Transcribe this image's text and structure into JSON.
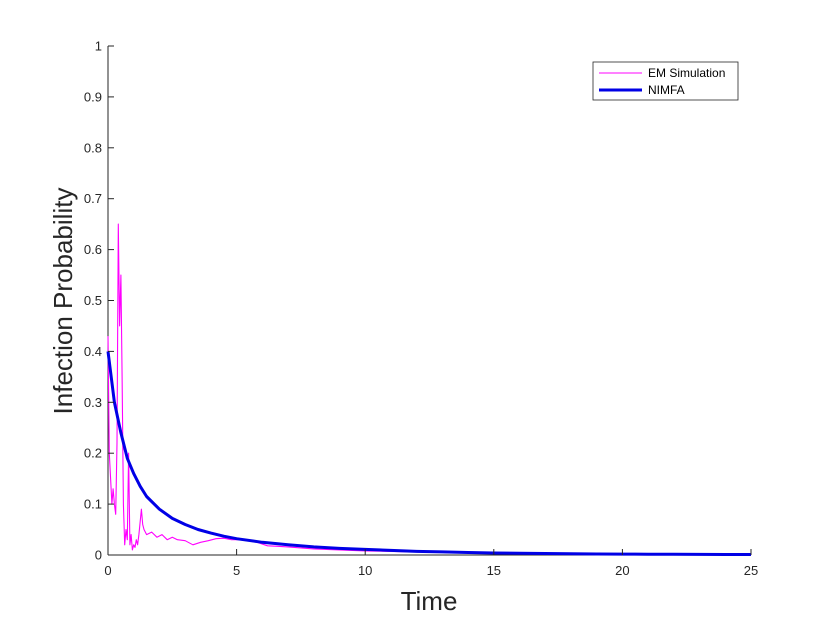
{
  "chart_data": {
    "type": "line",
    "xlabel": "Time",
    "ylabel": "Infection Probability",
    "xlim": [
      0,
      25
    ],
    "ylim": [
      0,
      1
    ],
    "xticks": [
      0,
      5,
      10,
      15,
      20,
      25
    ],
    "yticks": [
      0,
      0.1,
      0.2,
      0.3,
      0.4,
      0.5,
      0.6,
      0.7,
      0.8,
      0.9,
      1
    ],
    "grid": false,
    "legend_position": "top-right",
    "series": [
      {
        "name": "EM Simulation",
        "color": "#ff00ff",
        "style": "thin",
        "x": [
          0,
          0.05,
          0.1,
          0.15,
          0.2,
          0.25,
          0.3,
          0.35,
          0.4,
          0.45,
          0.5,
          0.55,
          0.6,
          0.65,
          0.7,
          0.75,
          0.8,
          0.85,
          0.9,
          0.95,
          1.0,
          1.05,
          1.1,
          1.15,
          1.2,
          1.3,
          1.35,
          1.4,
          1.5,
          1.7,
          1.9,
          2.1,
          2.3,
          2.5,
          2.7,
          3.0,
          3.3,
          3.6,
          3.9,
          4.2,
          4.5,
          4.8,
          5.1,
          5.4,
          5.8,
          6.2,
          6.6,
          7.0,
          7.5,
          8.0,
          9.0,
          10.0,
          11.0,
          12.0,
          13.0,
          14.0,
          15.0,
          16.0,
          17.0,
          18.0,
          19.0,
          20.0,
          21.0,
          22.0,
          23.0,
          24.0,
          25.0
        ],
        "y": [
          0.43,
          0.2,
          0.15,
          0.1,
          0.13,
          0.1,
          0.08,
          0.22,
          0.65,
          0.45,
          0.55,
          0.35,
          0.1,
          0.02,
          0.05,
          0.03,
          0.2,
          0.02,
          0.04,
          0.01,
          0.02,
          0.015,
          0.03,
          0.02,
          0.04,
          0.09,
          0.06,
          0.05,
          0.04,
          0.045,
          0.035,
          0.04,
          0.03,
          0.035,
          0.03,
          0.028,
          0.02,
          0.025,
          0.028,
          0.032,
          0.033,
          0.03,
          0.03,
          0.028,
          0.025,
          0.018,
          0.017,
          0.016,
          0.014,
          0.012,
          0.01,
          0.008,
          0.007,
          0.006,
          0.005,
          0.004,
          0.003,
          0.003,
          0.002,
          0.002,
          0.002,
          0.001,
          0.001,
          0.001,
          0.001,
          0.001,
          0.001
        ]
      },
      {
        "name": "NIMFA",
        "color": "#0000e6",
        "style": "thick",
        "x": [
          0,
          0.25,
          0.5,
          0.75,
          1.0,
          1.25,
          1.5,
          2.0,
          2.5,
          3.0,
          3.5,
          4.0,
          4.5,
          5.0,
          6.0,
          7.0,
          8.0,
          9.0,
          10.0,
          11.0,
          12.0,
          13.0,
          14.0,
          15.0,
          16.0,
          17.0,
          18.0,
          19.0,
          20.0,
          21.0,
          22.0,
          23.0,
          24.0,
          25.0
        ],
        "y": [
          0.4,
          0.3,
          0.24,
          0.19,
          0.16,
          0.135,
          0.115,
          0.09,
          0.072,
          0.06,
          0.05,
          0.043,
          0.037,
          0.032,
          0.025,
          0.02,
          0.016,
          0.013,
          0.011,
          0.009,
          0.007,
          0.006,
          0.005,
          0.004,
          0.0035,
          0.003,
          0.0025,
          0.002,
          0.0018,
          0.0015,
          0.0013,
          0.0011,
          0.001,
          0.0009
        ]
      }
    ]
  }
}
